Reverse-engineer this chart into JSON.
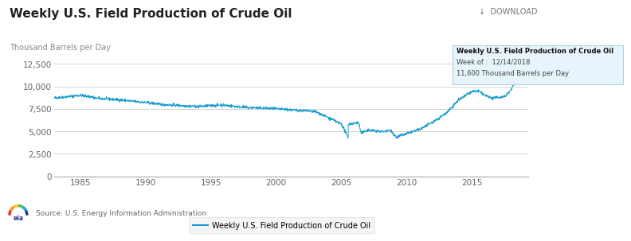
{
  "title": "Weekly U.S. Field Production of Crude Oil",
  "ylabel": "Thousand Barrels per Day",
  "download_text": "↓  DOWNLOAD",
  "legend_label": "Weekly U.S. Field Production of Crude Oil",
  "source_text": "Source: U.S. Energy Information Administration",
  "ylim": [
    0,
    12500
  ],
  "yticks": [
    0,
    2500,
    5000,
    7500,
    10000,
    12500
  ],
  "ytick_labels": [
    "0",
    "2,500",
    "5,000",
    "7,500",
    "10,000",
    "12,500"
  ],
  "xtick_years": [
    1985,
    1990,
    1995,
    2000,
    2005,
    2010,
    2015
  ],
  "line_color": "#1a9ed0",
  "bg_color": "#ffffff",
  "plot_bg_color": "#ffffff",
  "grid_color": "#cccccc",
  "title_fontsize": 11,
  "tick_fontsize": 7.5,
  "tooltip_title": "Weekly U.S. Field Production of Crude Oil",
  "tooltip_week": "Week of :  12/14/2018",
  "tooltip_value": "11,600 Thousand Barrels per Day",
  "tooltip_bg": "#e8f4fb",
  "tooltip_border": "#b0cfe0"
}
